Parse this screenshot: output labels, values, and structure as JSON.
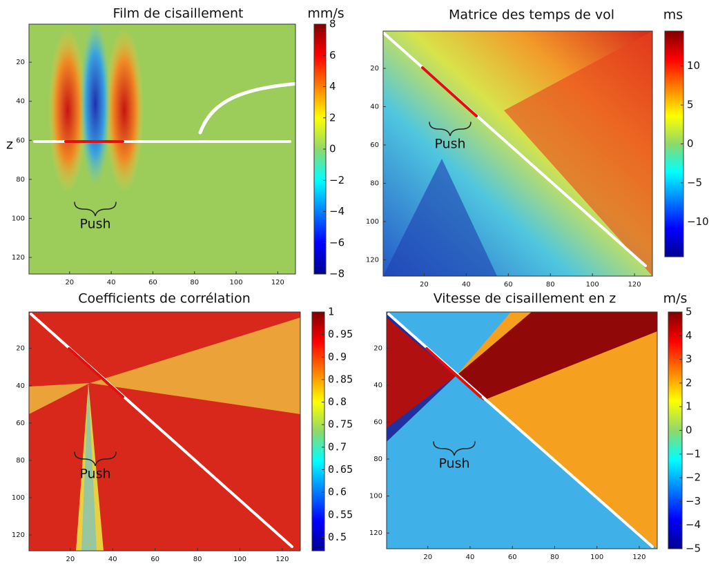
{
  "chart_data": [
    {
      "type": "heatmap",
      "title": "Film de cisaillement",
      "colorbar_label": "mm/s",
      "ylabel": "z",
      "annotation": "Push",
      "xlim": [
        0.5,
        128.5
      ],
      "ylim": [
        0.5,
        128.5
      ],
      "xticks": [
        20,
        40,
        60,
        80,
        100,
        120
      ],
      "yticks": [
        20,
        40,
        60,
        80,
        100,
        120
      ],
      "clim": [
        -8,
        8
      ],
      "cticks": [
        8,
        6,
        4,
        2,
        0,
        {
          "value": -2,
          "label": "−2"
        },
        {
          "value": -4,
          "label": "−4"
        },
        {
          "value": -6,
          "label": "−6"
        },
        {
          "value": -8,
          "label": "−8"
        }
      ]
    },
    {
      "type": "heatmap",
      "title": "Matrice des temps de vol",
      "colorbar_label": "ms",
      "annotation": "Push",
      "xlim": [
        0.5,
        128.5
      ],
      "ylim": [
        0.5,
        128.5
      ],
      "xticks": [
        20,
        40,
        60,
        80,
        100,
        120
      ],
      "yticks": [
        20,
        40,
        60,
        80,
        100,
        120
      ],
      "clim": [
        -14.5,
        14.5
      ],
      "cticks": [
        10,
        5,
        0,
        {
          "value": -5,
          "label": "−5"
        },
        {
          "value": -10,
          "label": "−10"
        }
      ]
    },
    {
      "type": "heatmap",
      "title": "Coefficients de corrélation",
      "annotation": "Push",
      "xlim": [
        0.5,
        128.5
      ],
      "ylim": [
        0.5,
        128.5
      ],
      "xticks": [
        20,
        40,
        60,
        80,
        100,
        120
      ],
      "yticks": [
        20,
        40,
        60,
        80,
        100,
        120
      ],
      "clim": [
        0.47,
        1
      ],
      "cticks": [
        1,
        0.95,
        0.9,
        0.85,
        0.8,
        0.75,
        0.7,
        0.65,
        0.6,
        0.55,
        0.5
      ]
    },
    {
      "type": "heatmap",
      "title": "Vitesse de cisaillement en z",
      "colorbar_label": "m/s",
      "annotation": "Push",
      "xlim": [
        0.5,
        128.5
      ],
      "ylim": [
        0.5,
        128.5
      ],
      "xticks": [
        20,
        40,
        60,
        80,
        100,
        120
      ],
      "yticks": [
        20,
        40,
        60,
        80,
        100,
        120
      ],
      "clim": [
        -5,
        5
      ],
      "cticks": [
        5,
        4,
        3,
        2,
        1,
        0,
        {
          "value": -1,
          "label": "−1"
        },
        {
          "value": -2,
          "label": "−2"
        },
        {
          "value": -3,
          "label": "−3"
        },
        {
          "value": -4,
          "label": "−4"
        },
        {
          "value": -5,
          "label": "−5"
        }
      ]
    }
  ]
}
